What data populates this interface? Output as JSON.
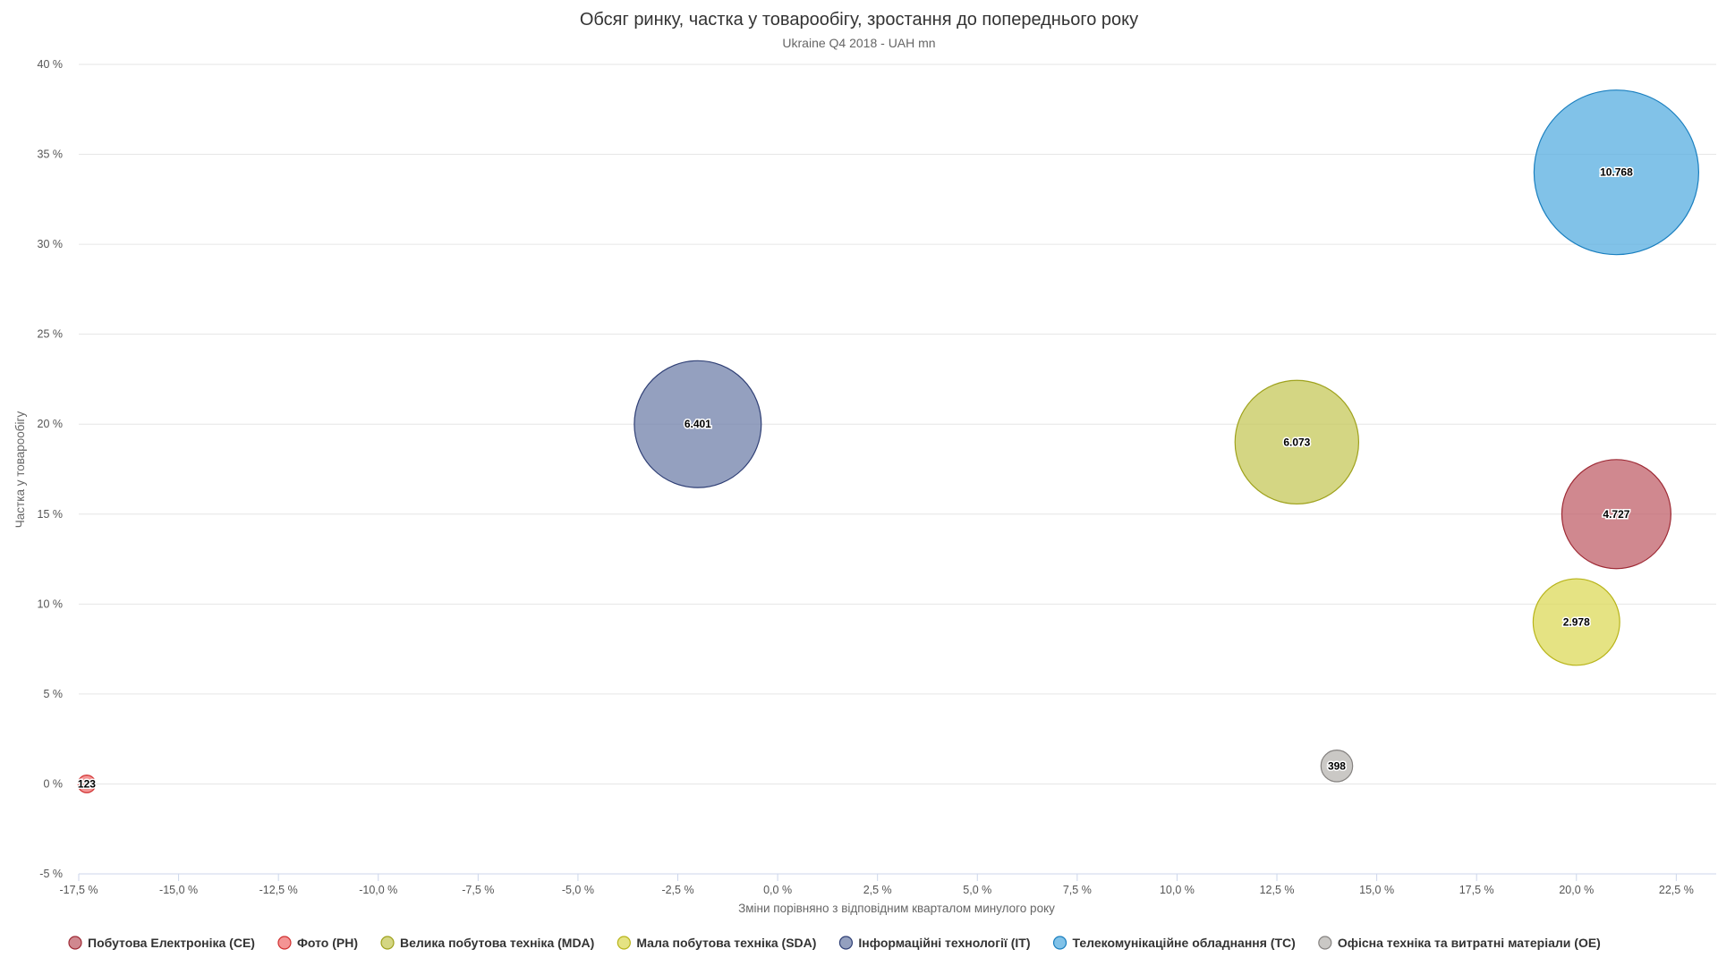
{
  "chart_data": {
    "type": "scatter",
    "subtype": "bubble",
    "title": "Обсяг ринку, частка у товарообігу, зростання до попереднього року",
    "subtitle": "Ukraine Q4 2018 - UAH mn",
    "xlabel": "Зміни порівняно з відповідним кварталом минулого року",
    "ylabel": "Частка у товарообігу",
    "xlim": [
      -17.5,
      23.5
    ],
    "ylim": [
      -5,
      40
    ],
    "x_ticks": [
      -17.5,
      -15,
      -12.5,
      -10,
      -7.5,
      -5,
      -2.5,
      0,
      2.5,
      5,
      7.5,
      10,
      12.5,
      15,
      17.5,
      20,
      22.5
    ],
    "x_tick_labels": [
      "-17,5 %",
      "-15,0 %",
      "-12,5 %",
      "-10,0 %",
      "-7,5 %",
      "-5,0 %",
      "-2,5 %",
      "0,0 %",
      "2,5 %",
      "5,0 %",
      "7,5 %",
      "10,0 %",
      "12,5 %",
      "15,0 %",
      "17,5 %",
      "20,0 %",
      "22,5 %"
    ],
    "y_ticks": [
      -5,
      0,
      5,
      10,
      15,
      20,
      25,
      30,
      35,
      40
    ],
    "y_tick_labels": [
      "-5 %",
      "0 %",
      "5 %",
      "10 %",
      "15 %",
      "20 %",
      "25 %",
      "30 %",
      "35 %",
      "40 %"
    ],
    "grid": "horizontal",
    "legend_position": "bottom",
    "series": [
      {
        "name": "Побутова Електроніка (CE)",
        "color": "#c0606a",
        "stroke": "#9e2a35",
        "x": 21.0,
        "y": 15.0,
        "size": 4727,
        "label": "4.727"
      },
      {
        "name": "Фото (PH)",
        "color": "#f07070",
        "stroke": "#d03030",
        "x": -17.3,
        "y": 0.0,
        "size": 123,
        "label": "123"
      },
      {
        "name": "Велика побутова техніка (MDA)",
        "color": "#c5c85a",
        "stroke": "#9fa21d",
        "x": 13.0,
        "y": 19.0,
        "size": 6073,
        "label": "6.073"
      },
      {
        "name": "Мала побутова техніка (SDA)",
        "color": "#dcd95a",
        "stroke": "#b8b41a",
        "x": 20.0,
        "y": 9.0,
        "size": 2978,
        "label": "2.978"
      },
      {
        "name": "Інформаційні технології (IT)",
        "color": "#7080aa",
        "stroke": "#2f3f75",
        "x": -2.0,
        "y": 20.0,
        "size": 6401,
        "label": "6.401"
      },
      {
        "name": "Телекомунікаційне обладнання (TC)",
        "color": "#57aee0",
        "stroke": "#1a7fbf",
        "x": 21.0,
        "y": 34.0,
        "size": 10768,
        "label": "10.768"
      },
      {
        "name": "Офісна техніка та витратні матеріали (OE)",
        "color": "#b8b5b2",
        "stroke": "#858280",
        "x": 14.0,
        "y": 1.0,
        "size": 398,
        "label": "398"
      }
    ]
  }
}
